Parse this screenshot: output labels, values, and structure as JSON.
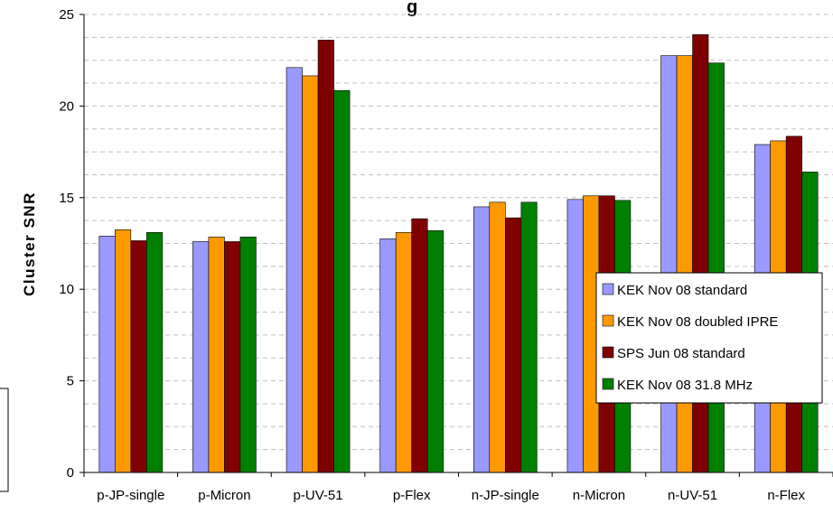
{
  "chart_data": {
    "type": "bar",
    "title": "",
    "title_fragment": "g",
    "xlabel": "",
    "ylabel": "Cluster SNR",
    "ylim": [
      0,
      25
    ],
    "yticks": [
      0,
      5,
      10,
      15,
      20,
      25
    ],
    "grid": true,
    "legend_position": "right",
    "categories": [
      "p-JP-single",
      "p-Micron",
      "p-UV-51",
      "p-Flex",
      "n-JP-single",
      "n-Micron",
      "n-UV-51",
      "n-Flex"
    ],
    "series": [
      {
        "name": "KEK Nov 08 standard",
        "color": "#9999ff",
        "values": [
          12.9,
          12.6,
          22.1,
          12.75,
          14.5,
          14.9,
          22.75,
          17.9
        ]
      },
      {
        "name": "KEK Nov 08 doubled IPRE",
        "color": "#ff9900",
        "values": [
          13.25,
          12.85,
          21.65,
          13.1,
          14.75,
          15.1,
          22.75,
          18.1
        ]
      },
      {
        "name": "SPS Jun 08 standard",
        "color": "#800000",
        "values": [
          12.65,
          12.6,
          23.6,
          13.85,
          13.9,
          15.1,
          23.9,
          18.35
        ]
      },
      {
        "name": "KEK Nov 08 31.8 MHz",
        "color": "#008000",
        "values": [
          13.1,
          12.85,
          20.85,
          13.2,
          14.75,
          14.85,
          22.35,
          16.4
        ]
      }
    ]
  }
}
